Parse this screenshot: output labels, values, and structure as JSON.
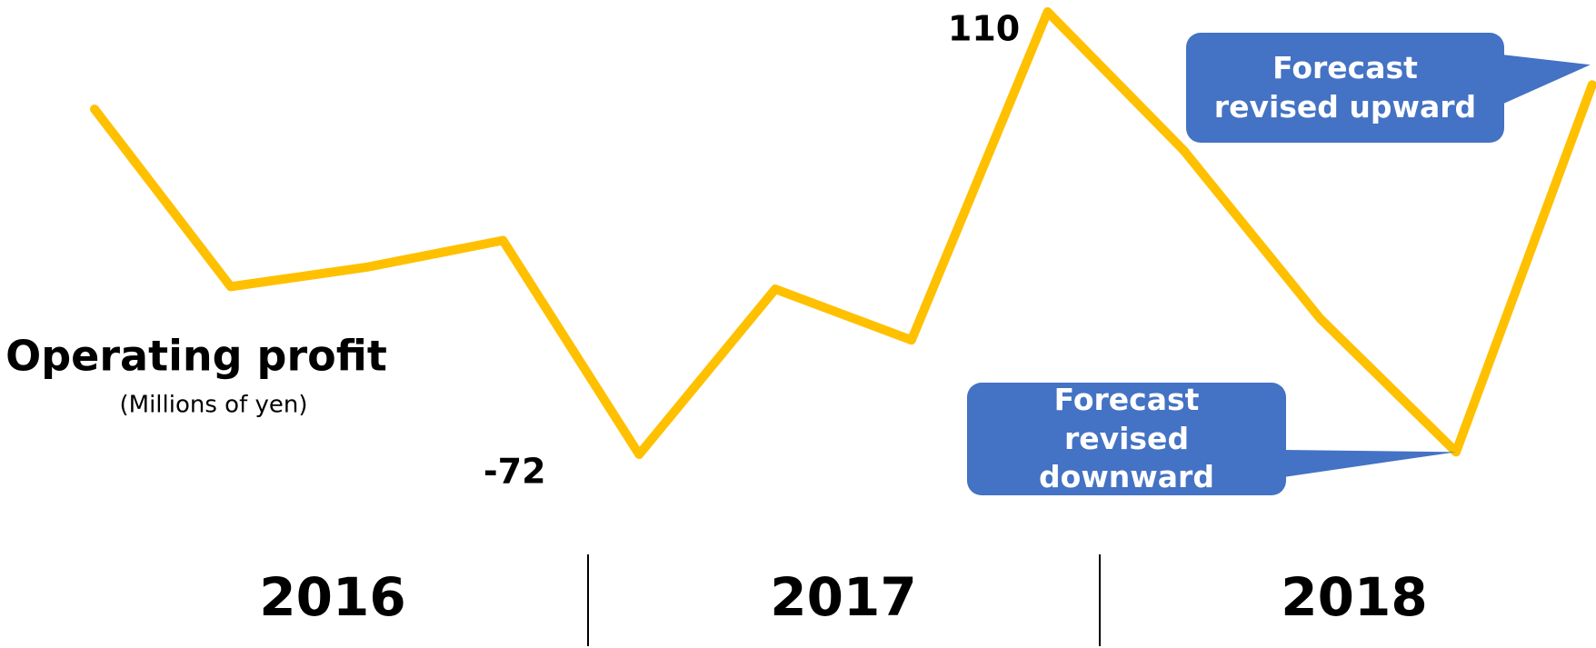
{
  "chart_data": {
    "type": "line",
    "y_label": "Operating profit",
    "y_sublabel": "(Millions of yen)",
    "categories": [
      null,
      null,
      null,
      null,
      null,
      null,
      null,
      null,
      null,
      null,
      null,
      null
    ],
    "groups": [
      "2016",
      "2017",
      "2018"
    ],
    "series": [
      {
        "name": null,
        "color": "#ffc000",
        "values": [
          70,
          -3,
          5,
          16,
          -72,
          -4,
          -25,
          110,
          53,
          -16,
          -71,
          80
        ]
      }
    ],
    "ylim": [
      -72,
      110
    ],
    "annotations": [
      "Forecast revised upward",
      "Forecast revised downward"
    ],
    "annotation_color": "#4472c4"
  }
}
